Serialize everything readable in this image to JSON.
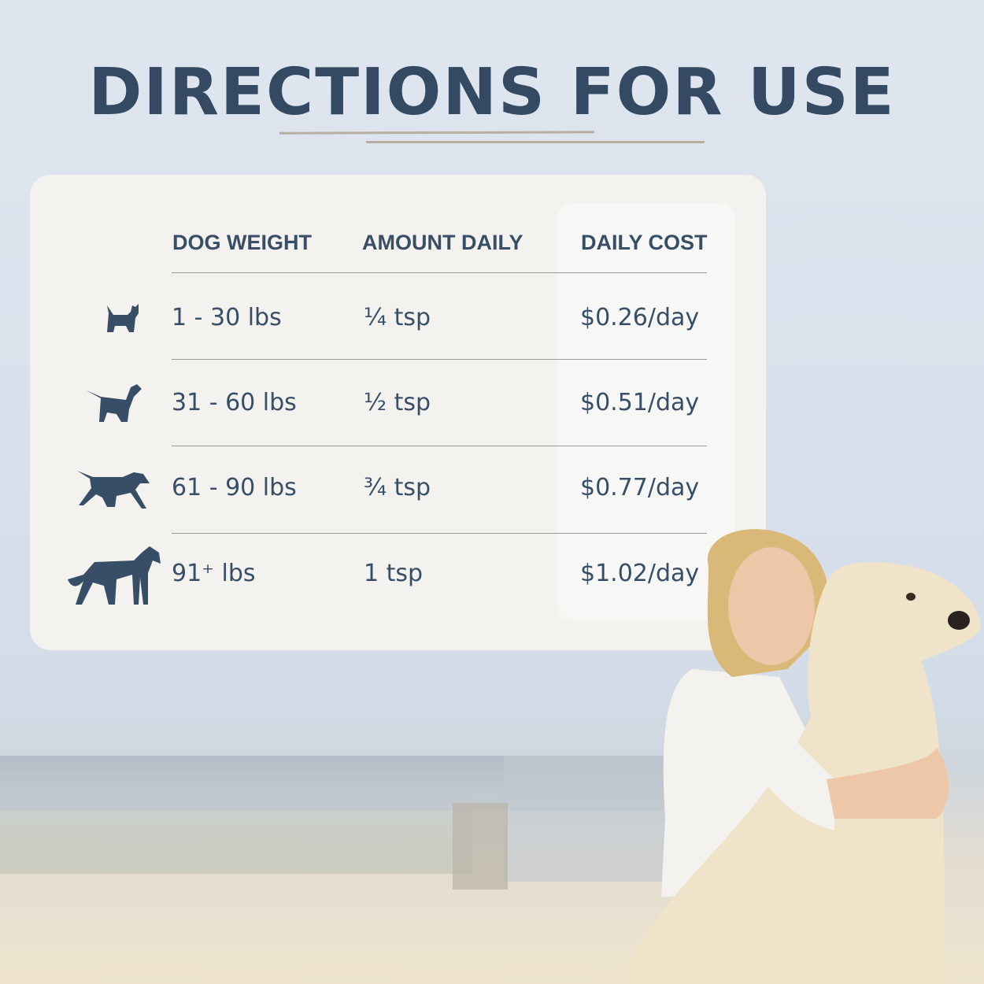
{
  "title": "DIRECTIONS FOR USE",
  "table": {
    "headers": [
      "DOG WEIGHT",
      "AMOUNT DAILY",
      "DAILY COST"
    ],
    "rows": [
      {
        "icon": "small-dog-icon",
        "weight": "1 - 30 lbs",
        "amount": "¼ tsp",
        "cost": "$0.26/day"
      },
      {
        "icon": "medium-dog-icon",
        "weight": "31 - 60 lbs",
        "amount": "½ tsp",
        "cost": "$0.51/day"
      },
      {
        "icon": "large-dog-icon",
        "weight": "61 - 90 lbs",
        "amount": "¾ tsp",
        "cost": "$0.77/day"
      },
      {
        "icon": "giant-dog-icon",
        "weight": "91⁺ lbs",
        "amount": "1 tsp",
        "cost": "$1.02/day"
      }
    ]
  },
  "colors": {
    "text": "#384e66",
    "card": "#f3f2ee",
    "accent_rule": "#b9aea2"
  }
}
